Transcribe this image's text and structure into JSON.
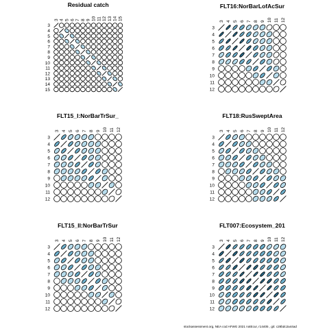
{
  "footer": "stockassessment.org, NEA cod AFWG 2021 notEcur, r14405 , git: c28bdc2a44ad",
  "chart_data": [
    {
      "type": "correlation-ellipse-matrix",
      "title": "Residual catch",
      "ages": [
        3,
        4,
        5,
        6,
        7,
        8,
        9,
        10,
        11,
        12,
        13,
        14,
        15
      ],
      "cells": [
        [
          1,
          0,
          0,
          0,
          0,
          0,
          0,
          0,
          0,
          0,
          0,
          0,
          0
        ],
        [
          0,
          1,
          -0.3,
          0,
          0,
          0,
          0,
          0,
          0,
          0,
          0,
          0,
          0
        ],
        [
          0,
          -0.3,
          1,
          -0.3,
          0,
          0,
          0,
          0,
          0,
          0,
          0,
          0,
          0
        ],
        [
          0,
          0,
          -0.3,
          1,
          -0.3,
          0,
          0,
          0,
          0,
          0,
          0,
          0,
          0
        ],
        [
          0,
          0,
          0,
          -0.3,
          1,
          -0.3,
          0,
          0,
          0,
          0,
          0,
          0,
          0
        ],
        [
          0,
          0,
          0,
          0,
          -0.3,
          1,
          -0.3,
          0,
          0,
          0,
          0,
          0,
          0
        ],
        [
          0,
          0,
          0,
          0,
          0,
          -0.3,
          1,
          -0.3,
          0,
          0,
          0,
          0,
          0
        ],
        [
          0,
          0,
          0,
          0,
          0,
          0,
          -0.3,
          1,
          -0.3,
          0,
          0,
          0,
          0
        ],
        [
          0,
          0,
          0,
          0,
          0,
          0,
          0,
          -0.3,
          1,
          -0.3,
          0,
          0,
          0
        ],
        [
          0,
          0,
          0,
          0,
          0,
          0,
          0,
          0,
          -0.3,
          1,
          -0.3,
          0,
          0
        ],
        [
          0,
          0,
          0,
          0,
          0,
          0,
          0,
          0,
          0,
          -0.3,
          1,
          -0.3,
          0
        ],
        [
          0,
          0,
          0,
          0,
          0,
          0,
          0,
          0,
          0,
          0,
          -0.3,
          1,
          -0.3
        ],
        [
          0,
          0,
          0,
          0,
          0,
          0,
          0,
          0,
          0,
          0,
          0,
          -0.3,
          1
        ]
      ]
    },
    {
      "type": "correlation-ellipse-matrix",
      "title": "FLT16:NorBarLofAcSur",
      "ages": [
        3,
        4,
        5,
        6,
        7,
        8,
        9,
        10,
        11,
        12
      ],
      "cells": [
        [
          1,
          0.85,
          0.75,
          0.6,
          0.5,
          0.4,
          0.3,
          0.2,
          0,
          0
        ],
        [
          0.85,
          1,
          0.85,
          0.75,
          0.6,
          0.5,
          0.4,
          0.3,
          0,
          0
        ],
        [
          0.75,
          0.85,
          1,
          0.85,
          0.7,
          0.5,
          0.4,
          0.3,
          0,
          0
        ],
        [
          0.6,
          0.75,
          0.85,
          1,
          0.8,
          0.6,
          0.4,
          0.3,
          0,
          0
        ],
        [
          0.5,
          0.6,
          0.7,
          0.8,
          1,
          0.7,
          0.5,
          0.3,
          0.2,
          0
        ],
        [
          0.4,
          0.5,
          0.5,
          0.6,
          0.7,
          1,
          0.6,
          0.3,
          0.2,
          0
        ],
        [
          0,
          0,
          0,
          0,
          0.3,
          0.6,
          1,
          0.6,
          0.3,
          0
        ],
        [
          0,
          0,
          0,
          0,
          0,
          0.3,
          0.6,
          1,
          0.3,
          0
        ],
        [
          0,
          0,
          0,
          0,
          0,
          0,
          0.3,
          0.3,
          1,
          0.2
        ],
        [
          0,
          0,
          0,
          0,
          0,
          0,
          0,
          0,
          0.2,
          1
        ]
      ]
    },
    {
      "type": "correlation-ellipse-matrix",
      "title": "FLT15_I:NorBarTrSur_",
      "ages": [
        3,
        4,
        5,
        6,
        7,
        8,
        9,
        10,
        11,
        12
      ],
      "cells": [
        [
          1,
          0.65,
          0.45,
          0.35,
          0.3,
          0.3,
          0,
          0,
          0,
          0
        ],
        [
          0.65,
          1,
          0.65,
          0.45,
          0.35,
          0.3,
          0.3,
          0,
          0,
          0
        ],
        [
          0.45,
          0.65,
          1,
          0.65,
          0.45,
          0.35,
          0.3,
          0,
          0,
          0
        ],
        [
          0.35,
          0.45,
          0.65,
          1,
          0.65,
          0.45,
          0.3,
          0,
          0,
          0
        ],
        [
          0.3,
          0.35,
          0.45,
          0.65,
          1,
          0.6,
          0.4,
          0,
          0,
          0
        ],
        [
          0.3,
          0.3,
          0.35,
          0.45,
          0.6,
          1,
          0.6,
          0.3,
          0,
          0
        ],
        [
          0,
          0.3,
          0.3,
          0.3,
          0.4,
          0.6,
          1,
          0.3,
          0,
          0
        ],
        [
          0,
          0,
          0,
          0,
          0,
          0.3,
          0.3,
          1,
          0.3,
          0
        ],
        [
          0,
          0,
          0,
          0,
          0,
          0,
          0,
          0.3,
          1,
          0.2
        ],
        [
          0,
          0,
          0,
          0,
          0,
          0,
          0,
          0,
          0.2,
          1
        ]
      ]
    },
    {
      "type": "correlation-ellipse-matrix",
      "title": "FLT18:RusSweptArea",
      "ages": [
        3,
        4,
        5,
        6,
        7,
        8,
        9,
        10,
        11,
        12
      ],
      "cells": [
        [
          1,
          0.6,
          0.45,
          0.3,
          0,
          0,
          0,
          0,
          0,
          0
        ],
        [
          0.6,
          1,
          0.6,
          0.45,
          0.3,
          0,
          0,
          0,
          0,
          0
        ],
        [
          0.45,
          0.6,
          1,
          0.6,
          0.45,
          0.3,
          0,
          0,
          0,
          0
        ],
        [
          0.3,
          0.45,
          0.6,
          1,
          0.6,
          0.45,
          0.3,
          0,
          0,
          0
        ],
        [
          0.3,
          0.3,
          0.45,
          0.6,
          1,
          0.6,
          0.45,
          0.3,
          0,
          0
        ],
        [
          0,
          0.3,
          0.3,
          0.45,
          0.6,
          1,
          0.6,
          0.45,
          0.3,
          0
        ],
        [
          0,
          0,
          0,
          0.3,
          0.45,
          0.6,
          1,
          0.6,
          0.45,
          0.3
        ],
        [
          0,
          0,
          0,
          0,
          0.3,
          0.45,
          0.6,
          1,
          0.6,
          0.45
        ],
        [
          0,
          0,
          0,
          0,
          0,
          0.3,
          0.45,
          0.6,
          1,
          0.6
        ],
        [
          0,
          0,
          0,
          0,
          0,
          0.3,
          0.3,
          0.45,
          0.6,
          1
        ]
      ]
    },
    {
      "type": "correlation-ellipse-matrix",
      "title": "FLT15_II:NorBarTrSur",
      "ages": [
        3,
        4,
        5,
        6,
        7,
        8,
        9,
        10,
        11,
        12
      ],
      "cells": [
        [
          1,
          0.6,
          0.4,
          0.3,
          0.3,
          0,
          0,
          0,
          0,
          0
        ],
        [
          0.6,
          1,
          0.6,
          0.4,
          0.3,
          0.3,
          0,
          0,
          0,
          0
        ],
        [
          0.4,
          0.6,
          1,
          0.6,
          0.4,
          0.3,
          0,
          0,
          0,
          0
        ],
        [
          0.3,
          0.4,
          0.6,
          1,
          0.6,
          0.4,
          0.3,
          0,
          0,
          0
        ],
        [
          0.3,
          0.3,
          0.4,
          0.6,
          1,
          0.6,
          0.4,
          0,
          0,
          0
        ],
        [
          0,
          0.3,
          0.3,
          0.4,
          0.6,
          1,
          0.6,
          0.3,
          0,
          0
        ],
        [
          0,
          0,
          0,
          0.3,
          0.4,
          0.6,
          1,
          0.4,
          0,
          0
        ],
        [
          0,
          0,
          0,
          0,
          0,
          0.3,
          0.4,
          1,
          0.3,
          0
        ],
        [
          0,
          0,
          0,
          0,
          0,
          0,
          0,
          0.3,
          1,
          0.2
        ],
        [
          0,
          0,
          0,
          0,
          0,
          0,
          0,
          0,
          0.2,
          1
        ]
      ]
    },
    {
      "type": "correlation-ellipse-matrix",
      "title": "FLT007:Ecosystem_201",
      "ages": [
        3,
        4,
        5,
        6,
        7,
        8,
        9,
        10,
        11,
        12
      ],
      "cells": [
        [
          1,
          0.8,
          0.75,
          0.7,
          0.65,
          0.6,
          0.55,
          0.5,
          0.45,
          0.3
        ],
        [
          0.8,
          1,
          0.8,
          0.75,
          0.7,
          0.65,
          0.6,
          0.55,
          0.5,
          0.35
        ],
        [
          0.75,
          0.8,
          1,
          0.8,
          0.75,
          0.7,
          0.65,
          0.6,
          0.55,
          0.4
        ],
        [
          0.7,
          0.75,
          0.8,
          1,
          0.85,
          0.8,
          0.75,
          0.7,
          0.6,
          0.45
        ],
        [
          0.65,
          0.7,
          0.75,
          0.85,
          1,
          0.85,
          0.8,
          0.75,
          0.65,
          0.5
        ],
        [
          0.6,
          0.65,
          0.7,
          0.8,
          0.85,
          1,
          0.85,
          0.8,
          0.7,
          0.55
        ],
        [
          0.55,
          0.6,
          0.65,
          0.75,
          0.8,
          0.85,
          1,
          0.85,
          0.75,
          0.6
        ],
        [
          0.5,
          0.55,
          0.6,
          0.7,
          0.75,
          0.8,
          0.85,
          1,
          0.8,
          0.65
        ],
        [
          0.45,
          0.5,
          0.55,
          0.6,
          0.65,
          0.7,
          0.75,
          0.8,
          1,
          0.7
        ],
        [
          0.3,
          0.35,
          0.4,
          0.45,
          0.5,
          0.55,
          0.6,
          0.65,
          0.7,
          1
        ]
      ]
    }
  ]
}
